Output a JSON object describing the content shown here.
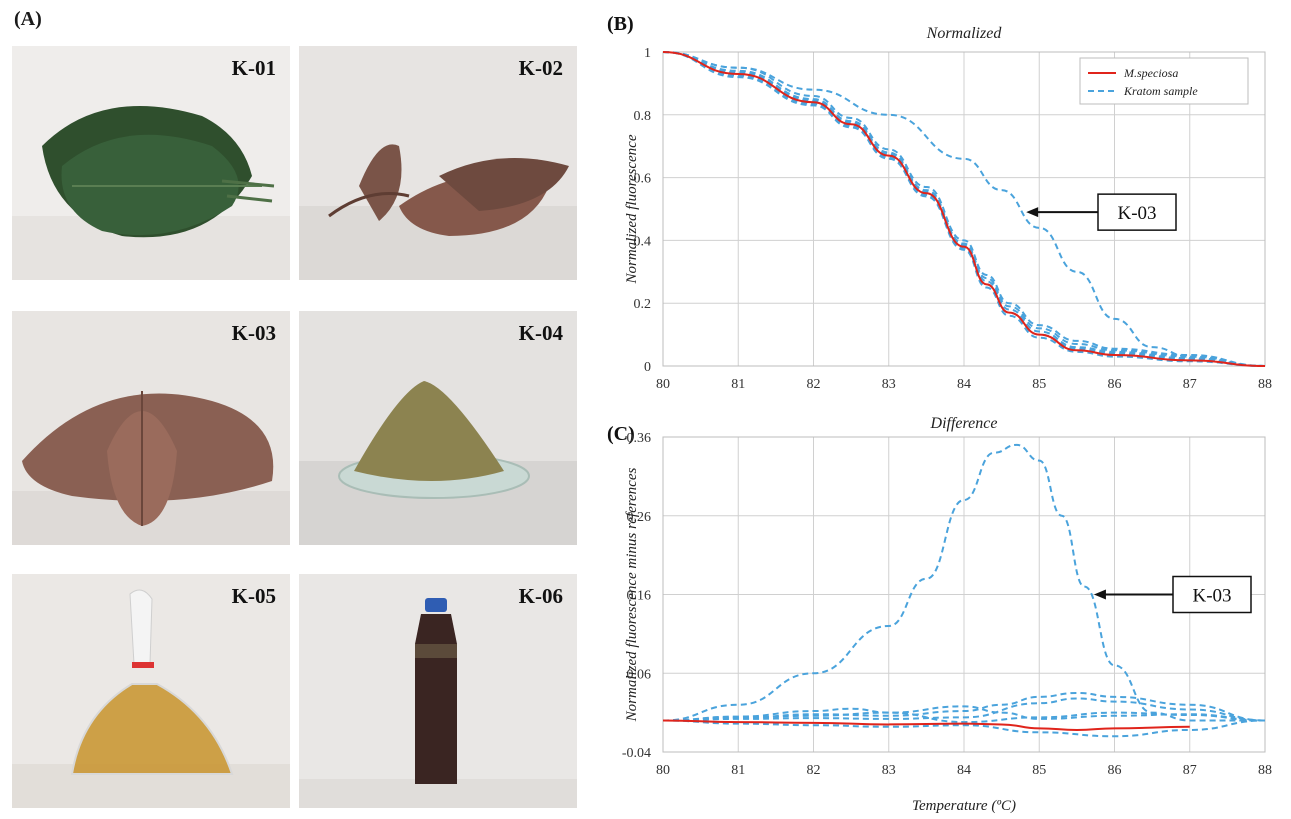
{
  "panel_a": {
    "label": "(A)",
    "samples": [
      {
        "id": "K-01"
      },
      {
        "id": "K-02"
      },
      {
        "id": "K-03"
      },
      {
        "id": "K-04"
      },
      {
        "id": "K-05"
      },
      {
        "id": "K-06"
      }
    ]
  },
  "colors": {
    "reference": "#e0241b",
    "sample": "#4aa3dc",
    "grid": "#d0d0d0"
  },
  "chart_data": [
    {
      "panel_label": "(B)",
      "type": "line",
      "title": "Normalized",
      "ylabel": "Normalized fluorescence",
      "xlabel": "",
      "xlim": [
        80,
        88
      ],
      "ylim": [
        0,
        1
      ],
      "xticks": [
        "80",
        "81",
        "82",
        "83",
        "84",
        "85",
        "86",
        "87",
        "88"
      ],
      "yticks": [
        "0",
        "0.2",
        "0.4",
        "0.6",
        "0.8",
        "1"
      ],
      "grid": true,
      "legend": {
        "position": "top-right",
        "entries": [
          "M.speciosa",
          "Kratom sample"
        ]
      },
      "annotation": {
        "text": "K-03",
        "target_x": 84.8,
        "target_y": 0.49
      },
      "series": [
        {
          "name": "M.speciosa",
          "style": "solid",
          "x": [
            80,
            81,
            82,
            82.5,
            83,
            83.5,
            84,
            84.3,
            84.6,
            85,
            85.5,
            86,
            87,
            88
          ],
          "y": [
            1,
            0.93,
            0.84,
            0.77,
            0.67,
            0.55,
            0.38,
            0.26,
            0.17,
            0.1,
            0.05,
            0.035,
            0.018,
            0
          ]
        },
        {
          "name": "Kratom sample",
          "style": "dashed",
          "x": [
            80,
            81,
            82,
            82.5,
            83,
            83.5,
            84,
            84.3,
            84.6,
            85,
            85.5,
            86,
            87,
            88
          ],
          "y": [
            1,
            0.94,
            0.85,
            0.78,
            0.68,
            0.56,
            0.39,
            0.28,
            0.19,
            0.12,
            0.07,
            0.05,
            0.03,
            0
          ]
        },
        {
          "style": "dashed",
          "x": [
            80,
            81,
            82,
            82.5,
            83,
            83.5,
            84,
            84.3,
            84.6,
            85,
            85.5,
            86,
            87,
            88
          ],
          "y": [
            1,
            0.92,
            0.83,
            0.76,
            0.66,
            0.54,
            0.37,
            0.25,
            0.16,
            0.09,
            0.045,
            0.03,
            0.015,
            0
          ]
        },
        {
          "style": "dashed",
          "x": [
            80,
            81,
            82,
            82.5,
            83,
            83.5,
            84,
            84.3,
            84.6,
            85,
            85.5,
            86,
            87,
            88
          ],
          "y": [
            1,
            0.95,
            0.86,
            0.79,
            0.69,
            0.57,
            0.4,
            0.29,
            0.2,
            0.13,
            0.08,
            0.055,
            0.035,
            0
          ]
        },
        {
          "style": "dashed",
          "x": [
            80,
            81,
            82,
            82.5,
            83,
            83.5,
            84,
            84.3,
            84.6,
            85,
            85.5,
            86,
            87,
            88
          ],
          "y": [
            1,
            0.935,
            0.845,
            0.775,
            0.675,
            0.555,
            0.385,
            0.27,
            0.18,
            0.11,
            0.06,
            0.045,
            0.025,
            0
          ]
        },
        {
          "style": "dashed",
          "x": [
            80,
            81,
            82,
            82.5,
            83,
            83.5,
            84,
            84.3,
            84.6,
            85,
            85.5,
            86,
            87,
            88
          ],
          "y": [
            1,
            0.925,
            0.835,
            0.765,
            0.665,
            0.545,
            0.375,
            0.26,
            0.17,
            0.1,
            0.055,
            0.04,
            0.022,
            0
          ]
        },
        {
          "style": "dashed",
          "x": [
            80,
            81,
            82,
            83,
            84,
            84.5,
            85,
            85.5,
            86,
            86.5,
            87,
            88
          ],
          "y": [
            1,
            0.95,
            0.88,
            0.8,
            0.66,
            0.56,
            0.44,
            0.3,
            0.15,
            0.06,
            0.03,
            0
          ]
        }
      ]
    },
    {
      "panel_label": "(C)",
      "type": "line",
      "title": "Difference",
      "ylabel": "Normalized fluorescence minus references",
      "xlabel": "Temperature (ºC)",
      "xlim": [
        80,
        88
      ],
      "ylim": [
        -0.04,
        0.36
      ],
      "xticks": [
        "80",
        "81",
        "82",
        "83",
        "84",
        "85",
        "86",
        "87",
        "88"
      ],
      "yticks": [
        "-0.04",
        "0.06",
        "0.16",
        "0.26",
        "0.36"
      ],
      "grid": true,
      "annotation": {
        "text": "K-03",
        "target_x": 85.7,
        "target_y": 0.16
      },
      "series": [
        {
          "name": "M.speciosa",
          "style": "solid",
          "x": [
            80,
            81,
            82,
            83,
            84,
            84.5,
            85,
            85.5,
            86,
            87
          ],
          "y": [
            0,
            -0.002,
            -0.003,
            -0.005,
            -0.004,
            -0.005,
            -0.01,
            -0.012,
            -0.01,
            -0.008
          ]
        },
        {
          "style": "dashed",
          "x": [
            80,
            81,
            82,
            83,
            83.5,
            84,
            84.4,
            84.7,
            85,
            85.3,
            85.6,
            86,
            86.5,
            87,
            88
          ],
          "y": [
            0,
            0.02,
            0.06,
            0.12,
            0.18,
            0.28,
            0.34,
            0.35,
            0.33,
            0.26,
            0.17,
            0.07,
            0.01,
            0,
            0
          ]
        },
        {
          "style": "dashed",
          "x": [
            80,
            81,
            82,
            83,
            84,
            84.5,
            85,
            85.5,
            86,
            87,
            88
          ],
          "y": [
            0,
            0.003,
            0.008,
            0.006,
            0.012,
            0.02,
            0.03,
            0.035,
            0.03,
            0.02,
            0
          ]
        },
        {
          "style": "dashed",
          "x": [
            80,
            81,
            82,
            82.5,
            83,
            84,
            85,
            86,
            87,
            88
          ],
          "y": [
            0,
            0.005,
            0.012,
            0.015,
            0.01,
            -0.002,
            0.004,
            0.01,
            0.007,
            0
          ]
        },
        {
          "style": "dashed",
          "x": [
            80,
            81,
            82,
            83,
            84,
            84.5,
            85,
            86,
            87,
            88
          ],
          "y": [
            0,
            0.004,
            0.006,
            0.01,
            0.018,
            0.01,
            0.002,
            0.006,
            0.008,
            0
          ]
        },
        {
          "style": "dashed",
          "x": [
            80,
            81,
            82,
            83,
            84,
            85,
            86,
            87,
            88
          ],
          "y": [
            0,
            -0.004,
            -0.006,
            -0.008,
            -0.006,
            -0.015,
            -0.02,
            -0.012,
            0
          ]
        },
        {
          "style": "dashed",
          "x": [
            80,
            81,
            82,
            83,
            84,
            85,
            85.5,
            86,
            87,
            88
          ],
          "y": [
            0,
            0.002,
            0.003,
            0.002,
            0.004,
            0.022,
            0.028,
            0.024,
            0.014,
            0
          ]
        }
      ]
    }
  ]
}
